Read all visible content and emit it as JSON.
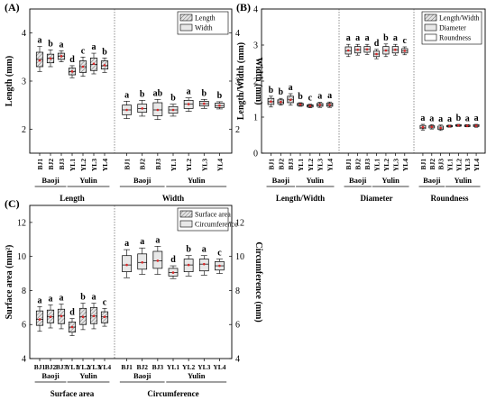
{
  "chart_data": [
    {
      "type": "box",
      "panel_label": "(A)",
      "ylabel_left": "Length (mm)",
      "ylabel_right": "Width (mm)",
      "legend": [
        "Length",
        "Width"
      ],
      "sites": [
        "BJ1",
        "BJ2",
        "BJ3",
        "YL1",
        "YL2",
        "YL3",
        "YL4"
      ],
      "sections": [
        {
          "name": "Length",
          "axis": "left",
          "ylim": [
            1.5,
            4.5
          ],
          "yticks": [
            "2",
            "3",
            "4"
          ],
          "groups": [
            {
              "name": "Baoji",
              "count": 3
            },
            {
              "name": "Yulin",
              "count": 4
            }
          ],
          "boxes": [
            {
              "q1": 3.3,
              "median": 3.45,
              "q3": 3.6,
              "min": 3.2,
              "max": 3.72,
              "mean": 3.43,
              "letter": "a"
            },
            {
              "q1": 3.38,
              "median": 3.48,
              "q3": 3.56,
              "min": 3.3,
              "max": 3.65,
              "mean": 3.47,
              "letter": "b"
            },
            {
              "q1": 3.45,
              "median": 3.52,
              "q3": 3.58,
              "min": 3.4,
              "max": 3.63,
              "mean": 3.52,
              "letter": "a"
            },
            {
              "q1": 3.13,
              "median": 3.2,
              "q3": 3.27,
              "min": 3.07,
              "max": 3.32,
              "mean": 3.2,
              "letter": "d"
            },
            {
              "q1": 3.18,
              "median": 3.3,
              "q3": 3.42,
              "min": 3.1,
              "max": 3.5,
              "mean": 3.3,
              "letter": "c"
            },
            {
              "q1": 3.22,
              "median": 3.35,
              "q3": 3.48,
              "min": 3.15,
              "max": 3.58,
              "mean": 3.36,
              "letter": "a"
            },
            {
              "q1": 3.25,
              "median": 3.32,
              "q3": 3.42,
              "min": 3.18,
              "max": 3.48,
              "mean": 3.33,
              "letter": "b"
            }
          ]
        },
        {
          "name": "Width",
          "axis": "right",
          "ylim": [
            1.5,
            4.5
          ],
          "yticks": [
            "2",
            "3",
            "4"
          ],
          "groups": [
            {
              "name": "Baoji",
              "count": 3
            },
            {
              "name": "Yulin",
              "count": 4
            }
          ],
          "boxes": [
            {
              "q1": 2.3,
              "median": 2.4,
              "q3": 2.5,
              "min": 2.22,
              "max": 2.58,
              "mean": 2.4,
              "letter": "a"
            },
            {
              "q1": 2.35,
              "median": 2.43,
              "q3": 2.52,
              "min": 2.27,
              "max": 2.6,
              "mean": 2.43,
              "letter": "b"
            },
            {
              "q1": 2.28,
              "median": 2.4,
              "q3": 2.55,
              "min": 2.2,
              "max": 2.62,
              "mean": 2.4,
              "letter": "ab"
            },
            {
              "q1": 2.33,
              "median": 2.4,
              "q3": 2.47,
              "min": 2.27,
              "max": 2.52,
              "mean": 2.4,
              "letter": "b"
            },
            {
              "q1": 2.43,
              "median": 2.52,
              "q3": 2.6,
              "min": 2.37,
              "max": 2.65,
              "mean": 2.52,
              "letter": "a"
            },
            {
              "q1": 2.48,
              "median": 2.53,
              "q3": 2.58,
              "min": 2.43,
              "max": 2.62,
              "mean": 2.53,
              "letter": "b"
            },
            {
              "q1": 2.45,
              "median": 2.49,
              "q3": 2.54,
              "min": 2.42,
              "max": 2.57,
              "mean": 2.49,
              "letter": "b"
            }
          ]
        }
      ]
    },
    {
      "type": "box",
      "panel_label": "(B)",
      "ylabel_left": "Length/Width (mm)",
      "legend": [
        "Length/Width",
        "Diameter",
        "Roundness"
      ],
      "sites": [
        "BJ1",
        "BJ2",
        "BJ3",
        "YL1",
        "YL2",
        "YL3",
        "YL4"
      ],
      "sections": [
        {
          "name": "Length/Width",
          "axis": "left",
          "ylim": [
            0,
            4
          ],
          "yticks": [
            "0",
            "1",
            "2",
            "3",
            "4"
          ],
          "groups": [
            {
              "name": "Baoji",
              "count": 3
            },
            {
              "name": "Yulin",
              "count": 4
            }
          ],
          "boxes": [
            {
              "q1": 1.35,
              "median": 1.43,
              "q3": 1.52,
              "min": 1.28,
              "max": 1.58,
              "mean": 1.43,
              "letter": "b"
            },
            {
              "q1": 1.37,
              "median": 1.42,
              "q3": 1.48,
              "min": 1.33,
              "max": 1.52,
              "mean": 1.42,
              "letter": "b"
            },
            {
              "q1": 1.4,
              "median": 1.48,
              "q3": 1.58,
              "min": 1.33,
              "max": 1.65,
              "mean": 1.48,
              "letter": "a"
            },
            {
              "q1": 1.32,
              "median": 1.35,
              "q3": 1.38,
              "min": 1.3,
              "max": 1.4,
              "mean": 1.35,
              "letter": "b"
            },
            {
              "q1": 1.28,
              "median": 1.31,
              "q3": 1.34,
              "min": 1.26,
              "max": 1.36,
              "mean": 1.31,
              "letter": "c"
            },
            {
              "q1": 1.3,
              "median": 1.34,
              "q3": 1.38,
              "min": 1.27,
              "max": 1.41,
              "mean": 1.34,
              "letter": "a"
            },
            {
              "q1": 1.3,
              "median": 1.34,
              "q3": 1.39,
              "min": 1.27,
              "max": 1.42,
              "mean": 1.34,
              "letter": "a"
            }
          ]
        },
        {
          "name": "Diameter",
          "axis": "left",
          "ylim": [
            0,
            4
          ],
          "groups": [
            {
              "name": "Baoji",
              "count": 3
            },
            {
              "name": "Yulin",
              "count": 4
            }
          ],
          "boxes": [
            {
              "q1": 2.75,
              "median": 2.84,
              "q3": 2.95,
              "min": 2.68,
              "max": 3.02,
              "mean": 2.85,
              "letter": "a"
            },
            {
              "q1": 2.78,
              "median": 2.87,
              "q3": 2.96,
              "min": 2.72,
              "max": 3.02,
              "mean": 2.87,
              "letter": "a"
            },
            {
              "q1": 2.8,
              "median": 2.88,
              "q3": 2.96,
              "min": 2.74,
              "max": 3.02,
              "mean": 2.88,
              "letter": "a"
            },
            {
              "q1": 2.68,
              "median": 2.75,
              "q3": 2.83,
              "min": 2.62,
              "max": 2.88,
              "mean": 2.75,
              "letter": "d"
            },
            {
              "q1": 2.75,
              "median": 2.85,
              "q3": 2.96,
              "min": 2.68,
              "max": 3.03,
              "mean": 2.85,
              "letter": "b"
            },
            {
              "q1": 2.78,
              "median": 2.87,
              "q3": 2.96,
              "min": 2.72,
              "max": 3.02,
              "mean": 2.87,
              "letter": "a"
            },
            {
              "q1": 2.78,
              "median": 2.84,
              "q3": 2.9,
              "min": 2.73,
              "max": 2.95,
              "mean": 2.84,
              "letter": "c"
            }
          ]
        },
        {
          "name": "Roundness",
          "axis": "left",
          "ylim": [
            0,
            4
          ],
          "groups": [
            {
              "name": "Baoji",
              "count": 3
            },
            {
              "name": "Yulin",
              "count": 4
            }
          ],
          "boxes": [
            {
              "q1": 0.68,
              "median": 0.72,
              "q3": 0.77,
              "min": 0.64,
              "max": 0.8,
              "mean": 0.72,
              "letter": "a"
            },
            {
              "q1": 0.7,
              "median": 0.73,
              "q3": 0.76,
              "min": 0.67,
              "max": 0.79,
              "mean": 0.73,
              "letter": "a"
            },
            {
              "q1": 0.66,
              "median": 0.7,
              "q3": 0.75,
              "min": 0.63,
              "max": 0.78,
              "mean": 0.7,
              "letter": "a"
            },
            {
              "q1": 0.73,
              "median": 0.75,
              "q3": 0.77,
              "min": 0.72,
              "max": 0.78,
              "mean": 0.75,
              "letter": "a"
            },
            {
              "q1": 0.75,
              "median": 0.77,
              "q3": 0.79,
              "min": 0.74,
              "max": 0.8,
              "mean": 0.77,
              "letter": "b"
            },
            {
              "q1": 0.74,
              "median": 0.76,
              "q3": 0.78,
              "min": 0.73,
              "max": 0.79,
              "mean": 0.76,
              "letter": "a"
            },
            {
              "q1": 0.74,
              "median": 0.76,
              "q3": 0.79,
              "min": 0.72,
              "max": 0.8,
              "mean": 0.76,
              "letter": "a"
            }
          ]
        }
      ]
    },
    {
      "type": "box",
      "panel_label": "(C)",
      "ylabel_left": "Surface area (mm²)",
      "ylabel_right": "Circumference (mm)",
      "legend": [
        "Surface area",
        "Circumference"
      ],
      "sites": [
        "BJ1",
        "BJ2",
        "BJ3",
        "YL1",
        "YL2",
        "YL3",
        "YL4"
      ],
      "sections": [
        {
          "name": "Surface area",
          "axis": "left",
          "ylim": [
            4,
            13
          ],
          "yticks": [
            "4",
            "6",
            "8",
            "10",
            "12"
          ],
          "groups": [
            {
              "name": "Baoji",
              "count": 3
            },
            {
              "name": "Yulin",
              "count": 4
            }
          ],
          "boxes": [
            {
              "q1": 5.95,
              "median": 6.3,
              "q3": 6.8,
              "min": 5.6,
              "max": 7.05,
              "mean": 6.3,
              "letter": "a"
            },
            {
              "q1": 6.1,
              "median": 6.45,
              "q3": 6.85,
              "min": 5.8,
              "max": 7.15,
              "mean": 6.45,
              "letter": "a"
            },
            {
              "q1": 6.05,
              "median": 6.5,
              "q3": 6.9,
              "min": 5.75,
              "max": 7.2,
              "mean": 6.5,
              "letter": "a"
            },
            {
              "q1": 5.55,
              "median": 5.85,
              "q3": 6.15,
              "min": 5.35,
              "max": 6.35,
              "mean": 5.85,
              "letter": "d"
            },
            {
              "q1": 6.0,
              "median": 6.45,
              "q3": 6.95,
              "min": 5.7,
              "max": 7.25,
              "mean": 6.45,
              "letter": "b"
            },
            {
              "q1": 6.05,
              "median": 6.5,
              "q3": 7.0,
              "min": 5.75,
              "max": 7.25,
              "mean": 6.5,
              "letter": "a"
            },
            {
              "q1": 6.1,
              "median": 6.45,
              "q3": 6.75,
              "min": 5.9,
              "max": 6.95,
              "mean": 6.45,
              "letter": "c"
            }
          ]
        },
        {
          "name": "Circumference",
          "axis": "right",
          "ylim": [
            4,
            13
          ],
          "yticks": [
            "4",
            "6",
            "8",
            "10",
            "12"
          ],
          "groups": [
            {
              "name": "Baoji",
              "count": 3
            },
            {
              "name": "Yulin",
              "count": 4
            }
          ],
          "boxes": [
            {
              "q1": 9.1,
              "median": 9.5,
              "q3": 10.05,
              "min": 8.75,
              "max": 10.4,
              "mean": 9.5,
              "letter": "a"
            },
            {
              "q1": 9.25,
              "median": 9.65,
              "q3": 10.15,
              "min": 8.95,
              "max": 10.5,
              "mean": 9.65,
              "letter": "a"
            },
            {
              "q1": 9.3,
              "median": 9.75,
              "q3": 10.3,
              "min": 8.95,
              "max": 10.6,
              "mean": 9.75,
              "letter": "a"
            },
            {
              "q1": 8.85,
              "median": 9.05,
              "q3": 9.3,
              "min": 8.7,
              "max": 9.45,
              "mean": 9.05,
              "letter": "d"
            },
            {
              "q1": 9.1,
              "median": 9.5,
              "q3": 9.85,
              "min": 8.85,
              "max": 10.05,
              "mean": 9.5,
              "letter": "b"
            },
            {
              "q1": 9.15,
              "median": 9.55,
              "q3": 9.85,
              "min": 8.9,
              "max": 10.05,
              "mean": 9.55,
              "letter": "a"
            },
            {
              "q1": 9.2,
              "median": 9.45,
              "q3": 9.7,
              "min": 9.0,
              "max": 9.85,
              "mean": 9.45,
              "letter": "c"
            }
          ]
        }
      ]
    }
  ]
}
